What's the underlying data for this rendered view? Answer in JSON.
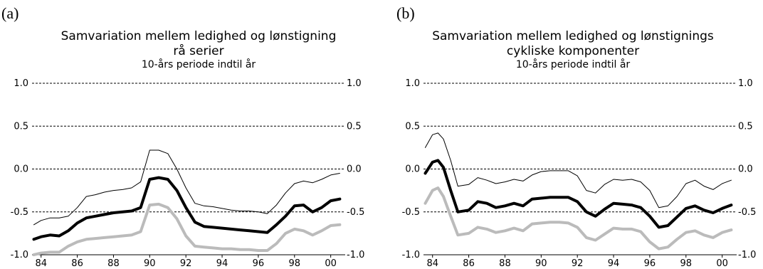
{
  "chart_data": [
    {
      "type": "line",
      "panel_label": "(a)",
      "title_lines": [
        "Samvariation mellem ledighed og lønstigning",
        "rå serier"
      ],
      "subtitle": "10-års periode indtil år",
      "ylim": [
        -1.0,
        1.0
      ],
      "yticks": [
        "1.0",
        "0.5",
        "0.0",
        "-0.5",
        "-1.0"
      ],
      "xlim": [
        1983.5,
        2000.8
      ],
      "xticks": [
        "84",
        "86",
        "88",
        "90",
        "92",
        "94",
        "96",
        "98",
        "00"
      ],
      "grid": true,
      "series": [
        {
          "color": "#000000",
          "width": 1,
          "x": [
            1983.6,
            1984.0,
            1984.5,
            1985.0,
            1985.5,
            1986.0,
            1986.5,
            1987.0,
            1987.5,
            1988.0,
            1988.5,
            1989.0,
            1989.5,
            1990.0,
            1990.5,
            1991.0,
            1991.5,
            1992.0,
            1992.5,
            1993.0,
            1993.5,
            1994.0,
            1994.5,
            1995.0,
            1995.5,
            1996.0,
            1996.5,
            1997.0,
            1997.5,
            1998.0,
            1998.5,
            1999.0,
            1999.5,
            2000.0,
            2000.5
          ],
          "y": [
            -0.65,
            -0.6,
            -0.57,
            -0.57,
            -0.55,
            -0.45,
            -0.32,
            -0.3,
            -0.27,
            -0.25,
            -0.24,
            -0.22,
            -0.15,
            0.22,
            0.22,
            0.18,
            0.0,
            -0.22,
            -0.4,
            -0.43,
            -0.44,
            -0.46,
            -0.48,
            -0.49,
            -0.49,
            -0.5,
            -0.52,
            -0.42,
            -0.28,
            -0.17,
            -0.14,
            -0.16,
            -0.12,
            -0.07,
            -0.05
          ]
        },
        {
          "color": "#000000",
          "width": 4,
          "x": [
            1983.6,
            1984.0,
            1984.5,
            1985.0,
            1985.5,
            1986.0,
            1986.5,
            1987.0,
            1987.5,
            1988.0,
            1988.5,
            1989.0,
            1989.5,
            1990.0,
            1990.5,
            1991.0,
            1991.5,
            1992.0,
            1992.5,
            1993.0,
            1993.5,
            1994.0,
            1994.5,
            1995.0,
            1995.5,
            1996.0,
            1996.5,
            1997.0,
            1997.5,
            1998.0,
            1998.5,
            1999.0,
            1999.5,
            2000.0,
            2000.5
          ],
          "y": [
            -0.82,
            -0.79,
            -0.77,
            -0.78,
            -0.72,
            -0.63,
            -0.57,
            -0.55,
            -0.53,
            -0.51,
            -0.5,
            -0.49,
            -0.45,
            -0.12,
            -0.1,
            -0.12,
            -0.25,
            -0.45,
            -0.62,
            -0.67,
            -0.68,
            -0.69,
            -0.7,
            -0.71,
            -0.72,
            -0.73,
            -0.74,
            -0.65,
            -0.55,
            -0.43,
            -0.42,
            -0.5,
            -0.45,
            -0.37,
            -0.35
          ]
        },
        {
          "color": "#bbbbbb",
          "width": 4,
          "x": [
            1983.6,
            1984.0,
            1984.5,
            1985.0,
            1985.5,
            1986.0,
            1986.5,
            1987.0,
            1987.5,
            1988.0,
            1988.5,
            1989.0,
            1989.5,
            1990.0,
            1990.5,
            1991.0,
            1991.5,
            1992.0,
            1992.5,
            1993.0,
            1993.5,
            1994.0,
            1994.5,
            1995.0,
            1995.5,
            1996.0,
            1996.5,
            1997.0,
            1997.5,
            1998.0,
            1998.5,
            1999.0,
            1999.5,
            2000.0,
            2000.5
          ],
          "y": [
            -1.0,
            -0.98,
            -0.97,
            -0.97,
            -0.9,
            -0.85,
            -0.82,
            -0.81,
            -0.8,
            -0.79,
            -0.78,
            -0.77,
            -0.73,
            -0.42,
            -0.41,
            -0.45,
            -0.58,
            -0.78,
            -0.9,
            -0.91,
            -0.92,
            -0.93,
            -0.93,
            -0.94,
            -0.94,
            -0.95,
            -0.95,
            -0.87,
            -0.75,
            -0.7,
            -0.72,
            -0.77,
            -0.72,
            -0.66,
            -0.65
          ]
        }
      ]
    },
    {
      "type": "line",
      "panel_label": "(b)",
      "title_lines": [
        "Samvariation mellem ledighed og lønstignings",
        "cykliske komponenter"
      ],
      "subtitle": "10-års periode indtil år",
      "ylim": [
        -1.0,
        1.0
      ],
      "yticks": [
        "1.0",
        "0.5",
        "0.0",
        "-0.5",
        "-1.0"
      ],
      "xlim": [
        1983.5,
        2000.8
      ],
      "xticks": [
        "84",
        "86",
        "88",
        "90",
        "92",
        "94",
        "96",
        "98",
        "00"
      ],
      "grid": true,
      "series": [
        {
          "color": "#000000",
          "width": 1,
          "x": [
            1983.6,
            1984.0,
            1984.3,
            1984.6,
            1985.0,
            1985.4,
            1986.0,
            1986.5,
            1987.0,
            1987.5,
            1988.0,
            1988.5,
            1989.0,
            1989.5,
            1990.0,
            1990.5,
            1991.0,
            1991.5,
            1992.0,
            1992.5,
            1993.0,
            1993.5,
            1994.0,
            1994.5,
            1995.0,
            1995.5,
            1996.0,
            1996.5,
            1997.0,
            1997.5,
            1998.0,
            1998.5,
            1999.0,
            1999.5,
            2000.0,
            2000.5
          ],
          "y": [
            0.25,
            0.4,
            0.42,
            0.35,
            0.1,
            -0.2,
            -0.18,
            -0.1,
            -0.13,
            -0.17,
            -0.15,
            -0.12,
            -0.14,
            -0.07,
            -0.03,
            -0.02,
            -0.02,
            -0.02,
            -0.08,
            -0.25,
            -0.28,
            -0.18,
            -0.12,
            -0.13,
            -0.12,
            -0.15,
            -0.25,
            -0.45,
            -0.43,
            -0.32,
            -0.17,
            -0.13,
            -0.2,
            -0.24,
            -0.17,
            -0.13
          ]
        },
        {
          "color": "#000000",
          "width": 4,
          "x": [
            1983.6,
            1984.0,
            1984.3,
            1984.6,
            1985.0,
            1985.4,
            1986.0,
            1986.5,
            1987.0,
            1987.5,
            1988.0,
            1988.5,
            1989.0,
            1989.5,
            1990.0,
            1990.5,
            1991.0,
            1991.5,
            1992.0,
            1992.5,
            1993.0,
            1993.5,
            1994.0,
            1994.5,
            1995.0,
            1995.5,
            1996.0,
            1996.5,
            1997.0,
            1997.5,
            1998.0,
            1998.5,
            1999.0,
            1999.5,
            2000.0,
            2000.5
          ],
          "y": [
            -0.05,
            0.08,
            0.1,
            0.02,
            -0.25,
            -0.5,
            -0.48,
            -0.38,
            -0.4,
            -0.45,
            -0.43,
            -0.4,
            -0.43,
            -0.35,
            -0.34,
            -0.33,
            -0.33,
            -0.33,
            -0.38,
            -0.5,
            -0.55,
            -0.47,
            -0.4,
            -0.41,
            -0.42,
            -0.45,
            -0.55,
            -0.68,
            -0.66,
            -0.56,
            -0.46,
            -0.43,
            -0.48,
            -0.51,
            -0.46,
            -0.42
          ]
        },
        {
          "color": "#bbbbbb",
          "width": 4,
          "x": [
            1983.6,
            1984.0,
            1984.3,
            1984.6,
            1985.0,
            1985.4,
            1986.0,
            1986.5,
            1987.0,
            1987.5,
            1988.0,
            1988.5,
            1989.0,
            1989.5,
            1990.0,
            1990.5,
            1991.0,
            1991.5,
            1992.0,
            1992.5,
            1993.0,
            1993.5,
            1994.0,
            1994.5,
            1995.0,
            1995.5,
            1996.0,
            1996.5,
            1997.0,
            1997.5,
            1998.0,
            1998.5,
            1999.0,
            1999.5,
            2000.0,
            2000.5
          ],
          "y": [
            -0.4,
            -0.25,
            -0.22,
            -0.32,
            -0.55,
            -0.77,
            -0.75,
            -0.68,
            -0.7,
            -0.74,
            -0.72,
            -0.69,
            -0.72,
            -0.64,
            -0.63,
            -0.62,
            -0.62,
            -0.63,
            -0.68,
            -0.8,
            -0.83,
            -0.76,
            -0.69,
            -0.7,
            -0.7,
            -0.73,
            -0.85,
            -0.93,
            -0.91,
            -0.82,
            -0.74,
            -0.72,
            -0.77,
            -0.8,
            -0.74,
            -0.71
          ]
        }
      ]
    }
  ]
}
